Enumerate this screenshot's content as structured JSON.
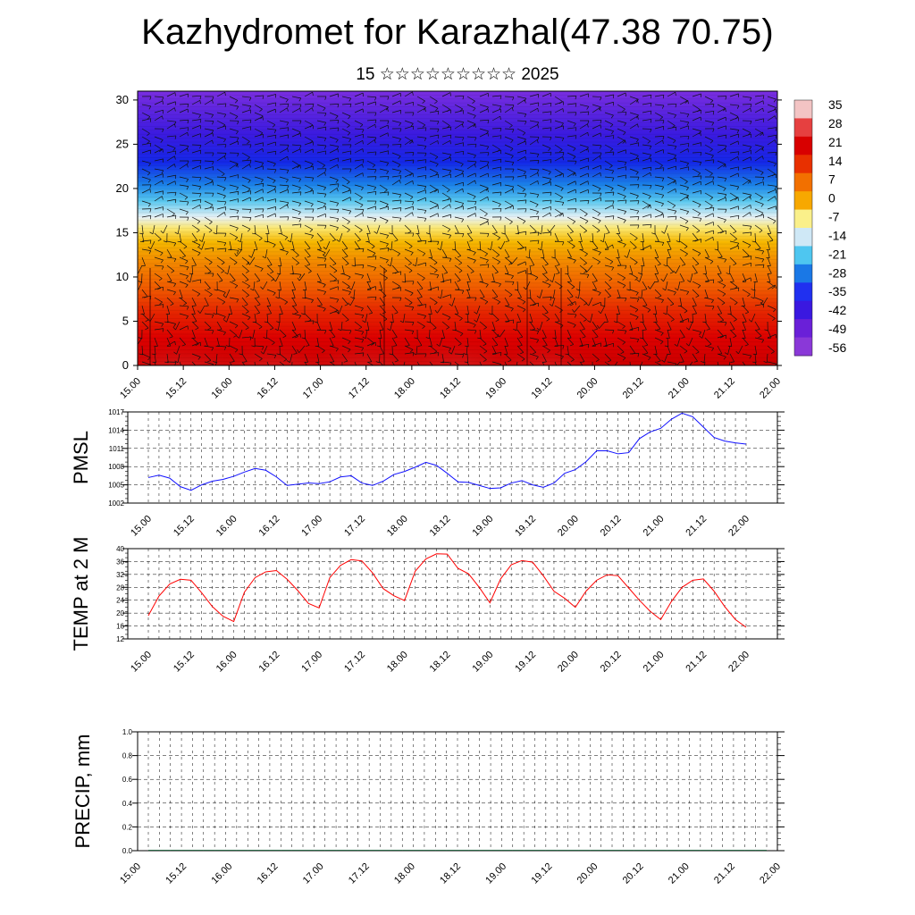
{
  "title": "Kazhydromet for Karazhal(47.38 70.75)",
  "subtitle": "15 ☆☆☆☆☆☆☆☆☆ 2025",
  "colors": {
    "pmsl_line": "#1010ff",
    "temp_line": "#ff0000",
    "precip_line": "#2e6b4a"
  },
  "chart_data": [
    {
      "type": "heatmap",
      "name": "vertical-section",
      "x_tick_labels": [
        "15.00",
        "15.12",
        "16.00",
        "16.12",
        "17.00",
        "17.12",
        "18.00",
        "18.12",
        "19.00",
        "19.12",
        "20.00",
        "20.12",
        "21.00",
        "21.12",
        "22.00"
      ],
      "y_tick_labels": [
        "0",
        "5",
        "10",
        "15",
        "20",
        "25",
        "30"
      ],
      "ylim": [
        0,
        31
      ],
      "colorbar_labels": [
        "35",
        "28",
        "21",
        "14",
        "7",
        "0",
        "-7",
        "-14",
        "-21",
        "-28",
        "-35",
        "-42",
        "-49",
        "-56"
      ],
      "colorbar_colors": [
        "#f3c4c4",
        "#e64040",
        "#d80000",
        "#e83000",
        "#f27000",
        "#f7a800",
        "#faf08a",
        "#cfe8f6",
        "#4ec6f0",
        "#1a78e6",
        "#2030f0",
        "#3a18e0",
        "#6a20d8",
        "#8a38d8"
      ],
      "wind_barbs": true
    },
    {
      "type": "line",
      "name": "pmsl",
      "ylabel": "PMSL",
      "ylim": [
        1002,
        1017
      ],
      "y_tick_labels": [
        "1017",
        "1014",
        "1011",
        "1008",
        "1005",
        "1002"
      ],
      "x_tick_labels": [
        "15.00",
        "15.12",
        "16.00",
        "16.12",
        "17.00",
        "17.12",
        "18.00",
        "18.12",
        "19.00",
        "19.12",
        "20.00",
        "20.12",
        "21.00",
        "21.12",
        "22.00"
      ],
      "x": [
        0,
        3,
        6,
        9,
        12,
        15,
        18,
        21,
        24,
        27,
        30,
        33,
        36,
        39,
        42,
        45,
        48,
        51,
        54,
        57,
        60,
        63,
        66,
        69,
        72,
        75,
        78,
        81,
        84,
        87,
        90,
        93,
        96,
        99,
        102,
        105,
        108,
        111,
        114,
        117,
        120,
        123,
        126,
        129,
        132,
        135,
        138,
        141,
        144,
        147,
        150,
        153,
        156,
        159,
        162,
        165,
        168
      ],
      "values": [
        1006.2,
        1006.6,
        1006.1,
        1004.7,
        1004.1,
        1005.0,
        1005.6,
        1005.9,
        1006.4,
        1007.1,
        1007.7,
        1007.4,
        1006.3,
        1004.9,
        1005.1,
        1005.3,
        1005.2,
        1005.5,
        1006.3,
        1006.5,
        1005.3,
        1004.9,
        1005.6,
        1006.7,
        1007.2,
        1007.9,
        1008.7,
        1008.2,
        1006.9,
        1005.5,
        1005.4,
        1004.9,
        1004.4,
        1004.5,
        1005.3,
        1005.7,
        1005.0,
        1004.6,
        1005.3,
        1006.9,
        1007.5,
        1008.8,
        1010.6,
        1010.6,
        1010.1,
        1010.3,
        1012.6,
        1013.7,
        1014.3,
        1015.8,
        1016.8,
        1016.2,
        1014.5,
        1012.8,
        1012.2,
        1011.9,
        1011.7
      ]
    },
    {
      "type": "line",
      "name": "temp",
      "ylabel": "TEMP at 2 M",
      "ylim": [
        12,
        40
      ],
      "y_tick_labels": [
        "40",
        "36",
        "32",
        "28",
        "24",
        "20",
        "16",
        "12"
      ],
      "x_tick_labels": [
        "15.00",
        "15.12",
        "16.00",
        "16.12",
        "17.00",
        "17.12",
        "18.00",
        "18.12",
        "19.00",
        "19.12",
        "20.00",
        "20.12",
        "21.00",
        "21.12",
        "22.00"
      ],
      "x": [
        0,
        3,
        6,
        9,
        12,
        15,
        18,
        21,
        24,
        27,
        30,
        33,
        36,
        39,
        42,
        45,
        48,
        51,
        54,
        57,
        60,
        63,
        66,
        69,
        72,
        75,
        78,
        81,
        84,
        87,
        90,
        93,
        96,
        99,
        102,
        105,
        108,
        111,
        114,
        117,
        120,
        123,
        126,
        129,
        132,
        135,
        138,
        141,
        144,
        147,
        150,
        153,
        156,
        159,
        162,
        165,
        168
      ],
      "values": [
        19.2,
        25.3,
        29.0,
        30.5,
        30.2,
        26.3,
        22.0,
        19.0,
        17.4,
        26.5,
        31.0,
        32.8,
        33.2,
        30.5,
        27.0,
        23.0,
        21.6,
        31.0,
        34.8,
        36.6,
        36.2,
        32.5,
        27.6,
        25.4,
        23.9,
        33.0,
        36.8,
        38.4,
        38.3,
        33.9,
        32.2,
        28.0,
        23.2,
        30.6,
        35.0,
        36.3,
        35.8,
        31.6,
        26.8,
        24.6,
        21.8,
        26.8,
        30.2,
        31.9,
        31.6,
        27.8,
        24.0,
        20.6,
        18.0,
        23.6,
        28.0,
        30.2,
        30.6,
        26.8,
        22.0,
        18.0,
        15.6
      ]
    },
    {
      "type": "bar",
      "name": "precip",
      "ylabel": "PRECIP, mm",
      "ylim": [
        0,
        1.0
      ],
      "y_tick_labels": [
        "1.0",
        "0.8",
        "0.6",
        "0.4",
        "0.2",
        "0.0"
      ],
      "x_tick_labels": [
        "15.00",
        "15.12",
        "16.00",
        "16.12",
        "17.00",
        "17.12",
        "18.00",
        "18.12",
        "19.00",
        "19.12",
        "20.00",
        "20.12",
        "21.00",
        "21.12",
        "22.00"
      ],
      "values": [
        0,
        0,
        0,
        0,
        0,
        0,
        0,
        0,
        0,
        0,
        0,
        0,
        0,
        0,
        0,
        0,
        0,
        0,
        0,
        0,
        0,
        0,
        0,
        0,
        0,
        0,
        0,
        0,
        0,
        0,
        0,
        0,
        0,
        0,
        0,
        0,
        0,
        0,
        0,
        0,
        0,
        0,
        0,
        0,
        0,
        0,
        0,
        0,
        0,
        0,
        0,
        0,
        0,
        0,
        0,
        0
      ]
    }
  ]
}
